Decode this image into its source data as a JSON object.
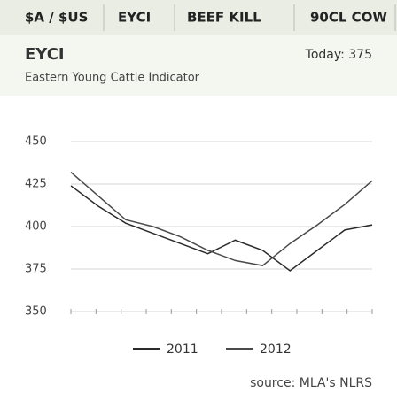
{
  "tabs": [
    "$A / $US",
    "EYCI",
    "BEEF KILL",
    "90CL COW"
  ],
  "heading": "EYCI",
  "today": "Today: 375",
  "chart_data": {
    "type": "line",
    "subtitle": "Eastern Young Cattle Indicator",
    "ylim": [
      350,
      450
    ],
    "yticks": [
      350,
      375,
      400,
      425,
      450
    ],
    "grid": true,
    "series": [
      {
        "name": "2011",
        "color": "#2b2b2b",
        "values": [
          424,
          412,
          402,
          396,
          390,
          384,
          392,
          386,
          374,
          386,
          398,
          401
        ]
      },
      {
        "name": "2012",
        "color": "#4a4a4a",
        "values": [
          432,
          418,
          404,
          400,
          394,
          386,
          380,
          377,
          390,
          401,
          413,
          427
        ]
      }
    ],
    "source": "source: MLA's NLRS"
  }
}
